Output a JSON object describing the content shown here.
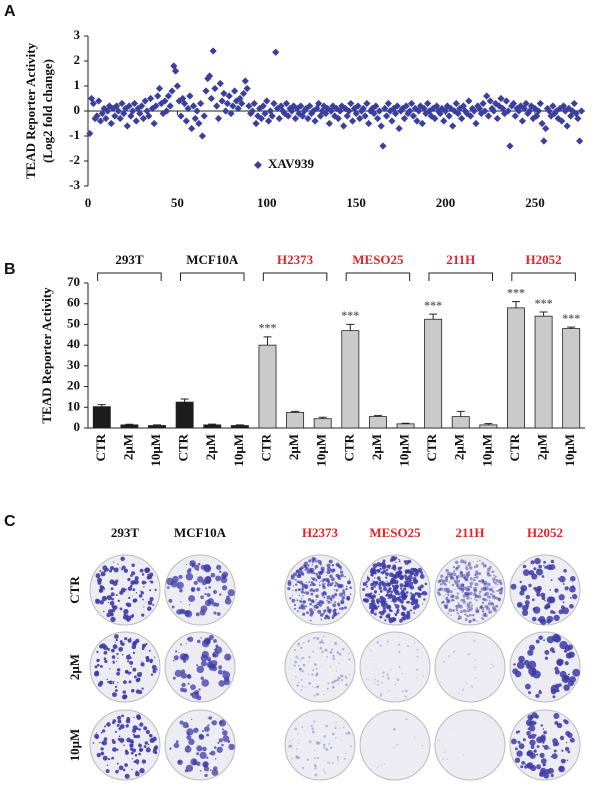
{
  "panels": [
    "A",
    "B",
    "C"
  ],
  "chart_data": [
    {
      "type": "scatter",
      "ylabel": [
        "TEAD Reporter Activity",
        "(Log2 fold change)"
      ],
      "xlim": [
        0,
        278
      ],
      "ylim": [
        -3,
        3
      ],
      "xticks": [
        0,
        50,
        100,
        150,
        200,
        250
      ],
      "yticks": [
        -3,
        -2,
        -1,
        0,
        1,
        2,
        3
      ],
      "series": [
        {
          "name": "XAV939",
          "color": "#3b3f9e",
          "x": [
            1,
            2,
            3,
            4,
            5,
            6,
            7,
            8,
            9,
            10,
            11,
            12,
            13,
            14,
            15,
            16,
            17,
            18,
            19,
            20,
            21,
            22,
            23,
            24,
            25,
            26,
            27,
            28,
            29,
            30,
            31,
            32,
            33,
            34,
            35,
            36,
            37,
            38,
            39,
            40,
            41,
            42,
            43,
            44,
            45,
            46,
            47,
            48,
            49,
            50,
            51,
            52,
            53,
            54,
            55,
            56,
            57,
            58,
            59,
            60,
            61,
            62,
            63,
            64,
            65,
            66,
            67,
            68,
            69,
            70,
            71,
            72,
            73,
            74,
            75,
            76,
            77,
            78,
            79,
            80,
            81,
            82,
            83,
            84,
            85,
            86,
            87,
            88,
            89,
            90,
            91,
            92,
            93,
            94,
            95,
            96,
            97,
            98,
            99,
            100,
            101,
            102,
            103,
            104,
            105,
            106,
            107,
            108,
            109,
            110,
            111,
            112,
            113,
            114,
            115,
            116,
            117,
            118,
            119,
            120,
            121,
            122,
            123,
            124,
            125,
            126,
            127,
            128,
            129,
            130,
            131,
            132,
            133,
            134,
            135,
            136,
            137,
            138,
            139,
            140,
            141,
            142,
            143,
            144,
            145,
            146,
            147,
            148,
            149,
            150,
            151,
            152,
            153,
            154,
            155,
            156,
            157,
            158,
            159,
            160,
            161,
            162,
            163,
            164,
            165,
            166,
            167,
            168,
            169,
            170,
            171,
            172,
            173,
            174,
            175,
            176,
            177,
            178,
            179,
            180,
            181,
            182,
            183,
            184,
            185,
            186,
            187,
            188,
            189,
            190,
            191,
            192,
            193,
            194,
            195,
            196,
            197,
            198,
            199,
            200,
            201,
            202,
            203,
            204,
            205,
            206,
            207,
            208,
            209,
            210,
            211,
            212,
            213,
            214,
            215,
            216,
            217,
            218,
            219,
            220,
            221,
            222,
            223,
            224,
            225,
            226,
            227,
            228,
            229,
            230,
            231,
            232,
            233,
            234,
            235,
            236,
            237,
            238,
            239,
            240,
            241,
            242,
            243,
            244,
            245,
            246,
            247,
            248,
            249,
            250,
            251,
            252,
            253,
            254,
            255,
            256,
            257,
            258,
            259,
            260,
            261,
            262,
            263,
            264,
            265,
            266,
            267,
            268,
            269,
            270,
            271,
            272,
            273,
            274,
            275,
            276
          ],
          "values": [
            -0.9,
            0.5,
            0.3,
            -0.3,
            -0.2,
            0.4,
            -0.4,
            -0.1,
            0.1,
            -0.3,
            0.0,
            0.2,
            -0.5,
            0.1,
            -0.2,
            0.2,
            0.0,
            -0.3,
            0.3,
            -0.1,
            0.1,
            -0.6,
            0.2,
            -0.2,
            0.0,
            0.3,
            -0.4,
            0.1,
            -0.1,
            0.2,
            -0.3,
            0.4,
            0.0,
            -0.2,
            0.5,
            0.1,
            -0.5,
            0.2,
            0.6,
            0.9,
            0.3,
            -0.1,
            0.4,
            0.0,
            0.6,
            0.2,
            0.8,
            1.8,
            1.6,
            1.0,
            0.4,
            -0.2,
            0.5,
            0.3,
            -0.4,
            0.1,
            0.6,
            -0.7,
            0.2,
            -0.3,
            0.0,
            -0.5,
            0.3,
            -1.0,
            -0.2,
            0.8,
            1.3,
            1.4,
            0.5,
            2.4,
            0.9,
            0.2,
            -0.3,
            1.1,
            0.4,
            0.7,
            0.0,
            0.3,
            0.6,
            -0.1,
            0.2,
            0.8,
            0.4,
            0.1,
            0.5,
            0.3,
            0.7,
            1.2,
            0.9,
            0.2,
            -0.1,
            0.0,
            0.3,
            -0.5,
            -0.2,
            0.1,
            -0.3,
            0.2,
            -0.1,
            0.4,
            -0.4,
            0.0,
            -0.2,
            0.3,
            2.35,
            0.1,
            -0.3,
            0.2,
            0.0,
            -0.1,
            0.3,
            -0.2,
            0.1,
            0.0,
            0.2,
            -0.3,
            0.1,
            -0.1,
            0.2,
            -0.2,
            0.0,
            0.1,
            -0.3,
            0.2,
            -0.1,
            0.0,
            -0.4,
            0.1,
            0.3,
            -0.2,
            0.0,
            0.2,
            -0.1,
            0.1,
            -0.5,
            0.0,
            0.2,
            -0.2,
            0.1,
            -0.3,
            0.0,
            0.2,
            -0.6,
            0.1,
            -0.2,
            0.0,
            0.3,
            -0.4,
            0.1,
            -0.1,
            0.2,
            -0.3,
            0.0,
            0.1,
            -0.2,
            0.3,
            -0.5,
            0.0,
            0.1,
            -0.1,
            0.2,
            -0.3,
            0.0,
            -0.6,
            -1.4,
            0.1,
            -0.2,
            0.3,
            0.0,
            -0.4,
            0.1,
            -0.1,
            0.2,
            -0.7,
            0.0,
            0.1,
            -0.3,
            0.2,
            -0.1,
            0.0,
            0.3,
            -0.2,
            0.1,
            -0.4,
            0.0,
            0.2,
            -0.5,
            0.1,
            -0.1,
            0.3,
            0.0,
            -0.2,
            0.1,
            -0.3,
            0.2,
            0.0,
            -0.1,
            0.1,
            -0.4,
            0.0,
            0.2,
            -0.2,
            0.1,
            -0.6,
            0.0,
            0.3,
            -0.1,
            0.1,
            -0.3,
            0.2,
            0.0,
            -0.1,
            0.4,
            -0.2,
            0.1,
            0.0,
            -0.5,
            0.2,
            0.1,
            -0.1,
            0.3,
            0.0,
            0.6,
            -0.2,
            0.4,
            0.1,
            0.0,
            0.3,
            -0.3,
            0.2,
            0.5,
            0.1,
            -0.1,
            0.4,
            0.0,
            -1.4,
            0.2,
            0.3,
            -0.2,
            0.1,
            0.0,
            0.2,
            -0.4,
            0.1,
            0.3,
            -0.1,
            0.0,
            0.2,
            -0.3,
            0.1,
            -0.2,
            0.0,
            0.3,
            -0.5,
            -1.2,
            -0.7,
            0.1,
            0.0,
            -0.2,
            0.2,
            -0.1,
            0.0,
            -0.3,
            0.1,
            -0.4,
            0.2,
            0.0,
            -0.6,
            0.1,
            -0.2,
            0.0,
            0.3,
            -0.1,
            -0.3,
            -1.2,
            0.0
          ]
        }
      ]
    },
    {
      "type": "bar",
      "ylabel": "TEAD Reporter Activity",
      "ylim": [
        0,
        70
      ],
      "yticks": [
        0,
        10,
        20,
        30,
        40,
        50,
        60,
        70
      ],
      "groups": [
        {
          "name": "293T",
          "color": "#111111"
        },
        {
          "name": "MCF10A",
          "color": "#111111"
        },
        {
          "name": "H2373",
          "color": "#e0242a"
        },
        {
          "name": "MESO25",
          "color": "#e0242a"
        },
        {
          "name": "211H",
          "color": "#e0242a"
        },
        {
          "name": "H2052",
          "color": "#e0242a"
        }
      ],
      "categories": [
        "CTR",
        "2μM",
        "10μM",
        "CTR",
        "2μM",
        "10μM",
        "CTR",
        "2μM",
        "10μM",
        "CTR",
        "2μM",
        "10μM",
        "CTR",
        "2μM",
        "10μM",
        "CTR",
        "2μM",
        "10μM"
      ],
      "values": [
        10.3,
        1.5,
        1.2,
        12.5,
        1.5,
        1.2,
        40,
        7.5,
        4.5,
        47,
        5.5,
        2,
        52.5,
        5.5,
        1.5,
        58,
        54,
        48
      ],
      "errors": [
        1,
        0.3,
        0.3,
        1.5,
        0.4,
        0.3,
        4,
        0.5,
        0.7,
        3,
        0.5,
        0.3,
        2.5,
        2.5,
        0.6,
        3,
        2,
        0.7
      ],
      "colors": [
        "#1c1c1c",
        "#1c1c1c",
        "#1c1c1c",
        "#1c1c1c",
        "#1c1c1c",
        "#1c1c1c",
        "#cacaca",
        "#cacaca",
        "#cacaca",
        "#cacaca",
        "#cacaca",
        "#cacaca",
        "#cacaca",
        "#cacaca",
        "#cacaca",
        "#cacaca",
        "#cacaca",
        "#cacaca"
      ],
      "significance": [
        "",
        "",
        "",
        "",
        "",
        "",
        "***",
        "",
        "",
        "***",
        "",
        "",
        "***",
        "",
        "",
        "***",
        "***",
        "***"
      ]
    }
  ],
  "panel_c": {
    "columns": [
      {
        "label": "293T",
        "color": "#111111"
      },
      {
        "label": "MCF10A",
        "color": "#111111"
      },
      {
        "label": "H2373",
        "color": "#e0242a"
      },
      {
        "label": "MESO25",
        "color": "#e0242a"
      },
      {
        "label": "211H",
        "color": "#e0242a"
      },
      {
        "label": "H2052",
        "color": "#e0242a"
      }
    ],
    "rows": [
      "CTR",
      "2μM",
      "10μM"
    ]
  }
}
